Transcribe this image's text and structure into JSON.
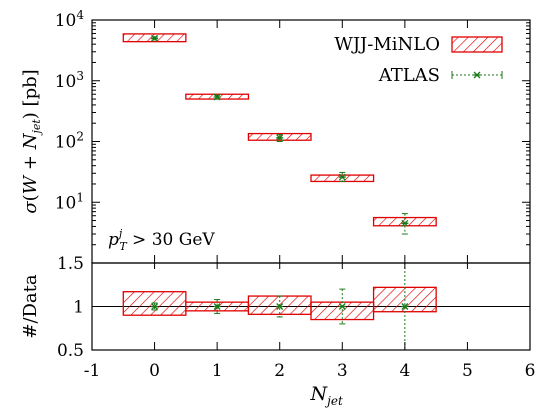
{
  "chart_data": [
    {
      "type": "bar",
      "panel": "main",
      "scale": "log",
      "ylim": [
        1,
        10000
      ],
      "xlim": [
        -1,
        6
      ],
      "xticks": [
        "-1",
        "0",
        "1",
        "2",
        "3",
        "4",
        "5",
        "6"
      ],
      "yticks": [
        {
          "value": 10000,
          "base": "10",
          "exp": "4"
        },
        {
          "value": 1000,
          "base": "10",
          "exp": "3"
        },
        {
          "value": 100,
          "base": "10",
          "exp": "2"
        },
        {
          "value": 10,
          "base": "10",
          "exp": "1"
        }
      ],
      "ylabel": "σ(W + N_jet) [pb]",
      "annotation": "p_T^j > 30 GeV",
      "legend_position": "top-right",
      "series": [
        {
          "name": "WJJ-MiNLO",
          "style": "hatched-box",
          "color": "#e00000",
          "points": [
            {
              "x": 0,
              "low": 4400,
              "high": 5900
            },
            {
              "x": 1,
              "low": 500,
              "high": 600
            },
            {
              "x": 2,
              "low": 105,
              "high": 135
            },
            {
              "x": 3,
              "low": 22,
              "high": 28
            },
            {
              "x": 4,
              "low": 4.1,
              "high": 5.6
            }
          ]
        },
        {
          "name": "ATLAS",
          "style": "points-with-errors",
          "color": "#1a7a1a",
          "points": [
            {
              "x": 0,
              "y": 5000,
              "err_low": 4700,
              "err_high": 5300
            },
            {
              "x": 1,
              "y": 540,
              "err_low": 500,
              "err_high": 580
            },
            {
              "x": 2,
              "y": 115,
              "err_low": 100,
              "err_high": 130
            },
            {
              "x": 3,
              "y": 26,
              "err_low": 22,
              "err_high": 31
            },
            {
              "x": 4,
              "y": 4.5,
              "err_low": 3.0,
              "err_high": 6.5
            }
          ]
        }
      ]
    },
    {
      "type": "bar",
      "panel": "ratio",
      "ylim": [
        0.5,
        1.5
      ],
      "yticks": [
        "0.5",
        "1",
        "1.5"
      ],
      "xlabel": "N_jet",
      "ylabel": "#/Data",
      "reference_line": 1,
      "series": [
        {
          "name": "WJJ-MiNLO",
          "style": "hatched-box",
          "color": "#e00000",
          "points": [
            {
              "x": 0,
              "low": 0.9,
              "high": 1.17
            },
            {
              "x": 1,
              "low": 0.95,
              "high": 1.05
            },
            {
              "x": 2,
              "low": 0.91,
              "high": 1.12
            },
            {
              "x": 3,
              "low": 0.85,
              "high": 1.05
            },
            {
              "x": 4,
              "low": 0.94,
              "high": 1.22
            }
          ]
        },
        {
          "name": "ATLAS",
          "style": "points-with-errors",
          "color": "#1a7a1a",
          "points": [
            {
              "x": 0,
              "y": 1.0,
              "err_low": 0.96,
              "err_high": 1.04
            },
            {
              "x": 1,
              "y": 1.0,
              "err_low": 0.92,
              "err_high": 1.08
            },
            {
              "x": 2,
              "y": 1.0,
              "err_low": 0.88,
              "err_high": 1.12
            },
            {
              "x": 3,
              "y": 1.0,
              "err_low": 0.8,
              "err_high": 1.2
            },
            {
              "x": 4,
              "y": 1.0,
              "err_low": 0.5,
              "err_high": 1.5
            }
          ]
        }
      ]
    }
  ]
}
